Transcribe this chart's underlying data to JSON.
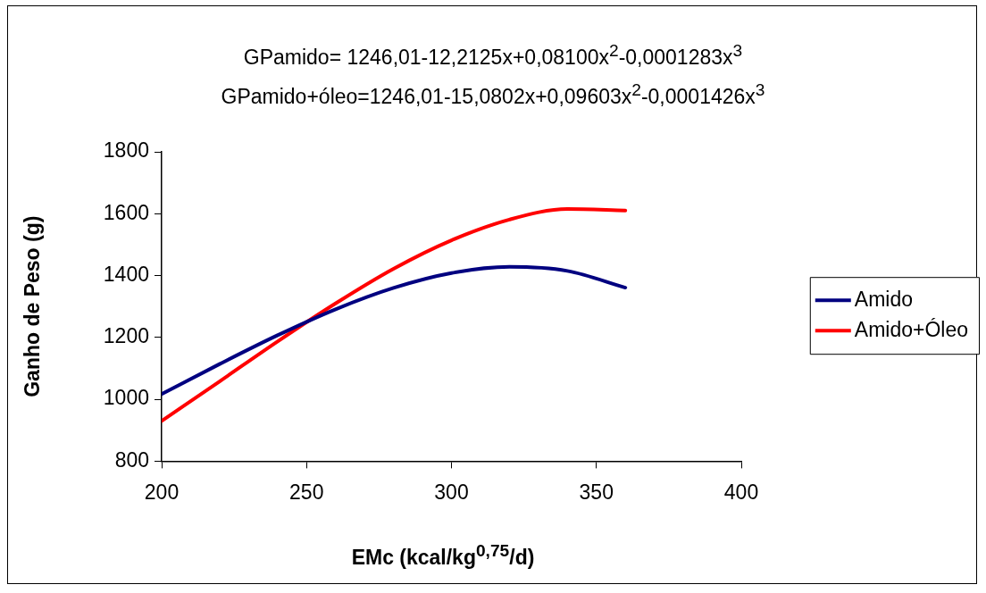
{
  "chart_data": {
    "type": "line",
    "title": "GPamido= 1246,01-12,2125x+0,08100x$^{2}$-0,0001283x$^{3}$",
    "subtitle": "GPamido+óleo=1246,01-15,0802x+0,09603x$^{2}$-0,0001426x$^{3}$",
    "xlabel": "EMc (kcal/kg$^{0,75}$/d)",
    "ylabel": "Ganho de Peso (g)",
    "x": [
      200,
      220,
      240,
      260,
      280,
      300,
      320,
      340,
      360
    ],
    "series": [
      {
        "name": "Amido",
        "color": "#000080",
        "values": [
          1017,
          1114,
          1207,
          1291,
          1360,
          1408,
          1428,
          1415,
          1361
        ]
      },
      {
        "name": "Amido+Óleo",
        "color": "#ff0000",
        "values": [
          930,
          1058,
          1187,
          1310,
          1422,
          1514,
          1581,
          1615,
          1610
        ]
      }
    ],
    "xlim": [
      200,
      400
    ],
    "xticks": [
      200,
      250,
      300,
      350,
      400
    ],
    "ylim": [
      800,
      1800
    ],
    "yticks": [
      800,
      1000,
      1200,
      1400,
      1600,
      1800
    ],
    "grid": false,
    "legend": "right",
    "marker": "none",
    "line_style": "solid"
  }
}
